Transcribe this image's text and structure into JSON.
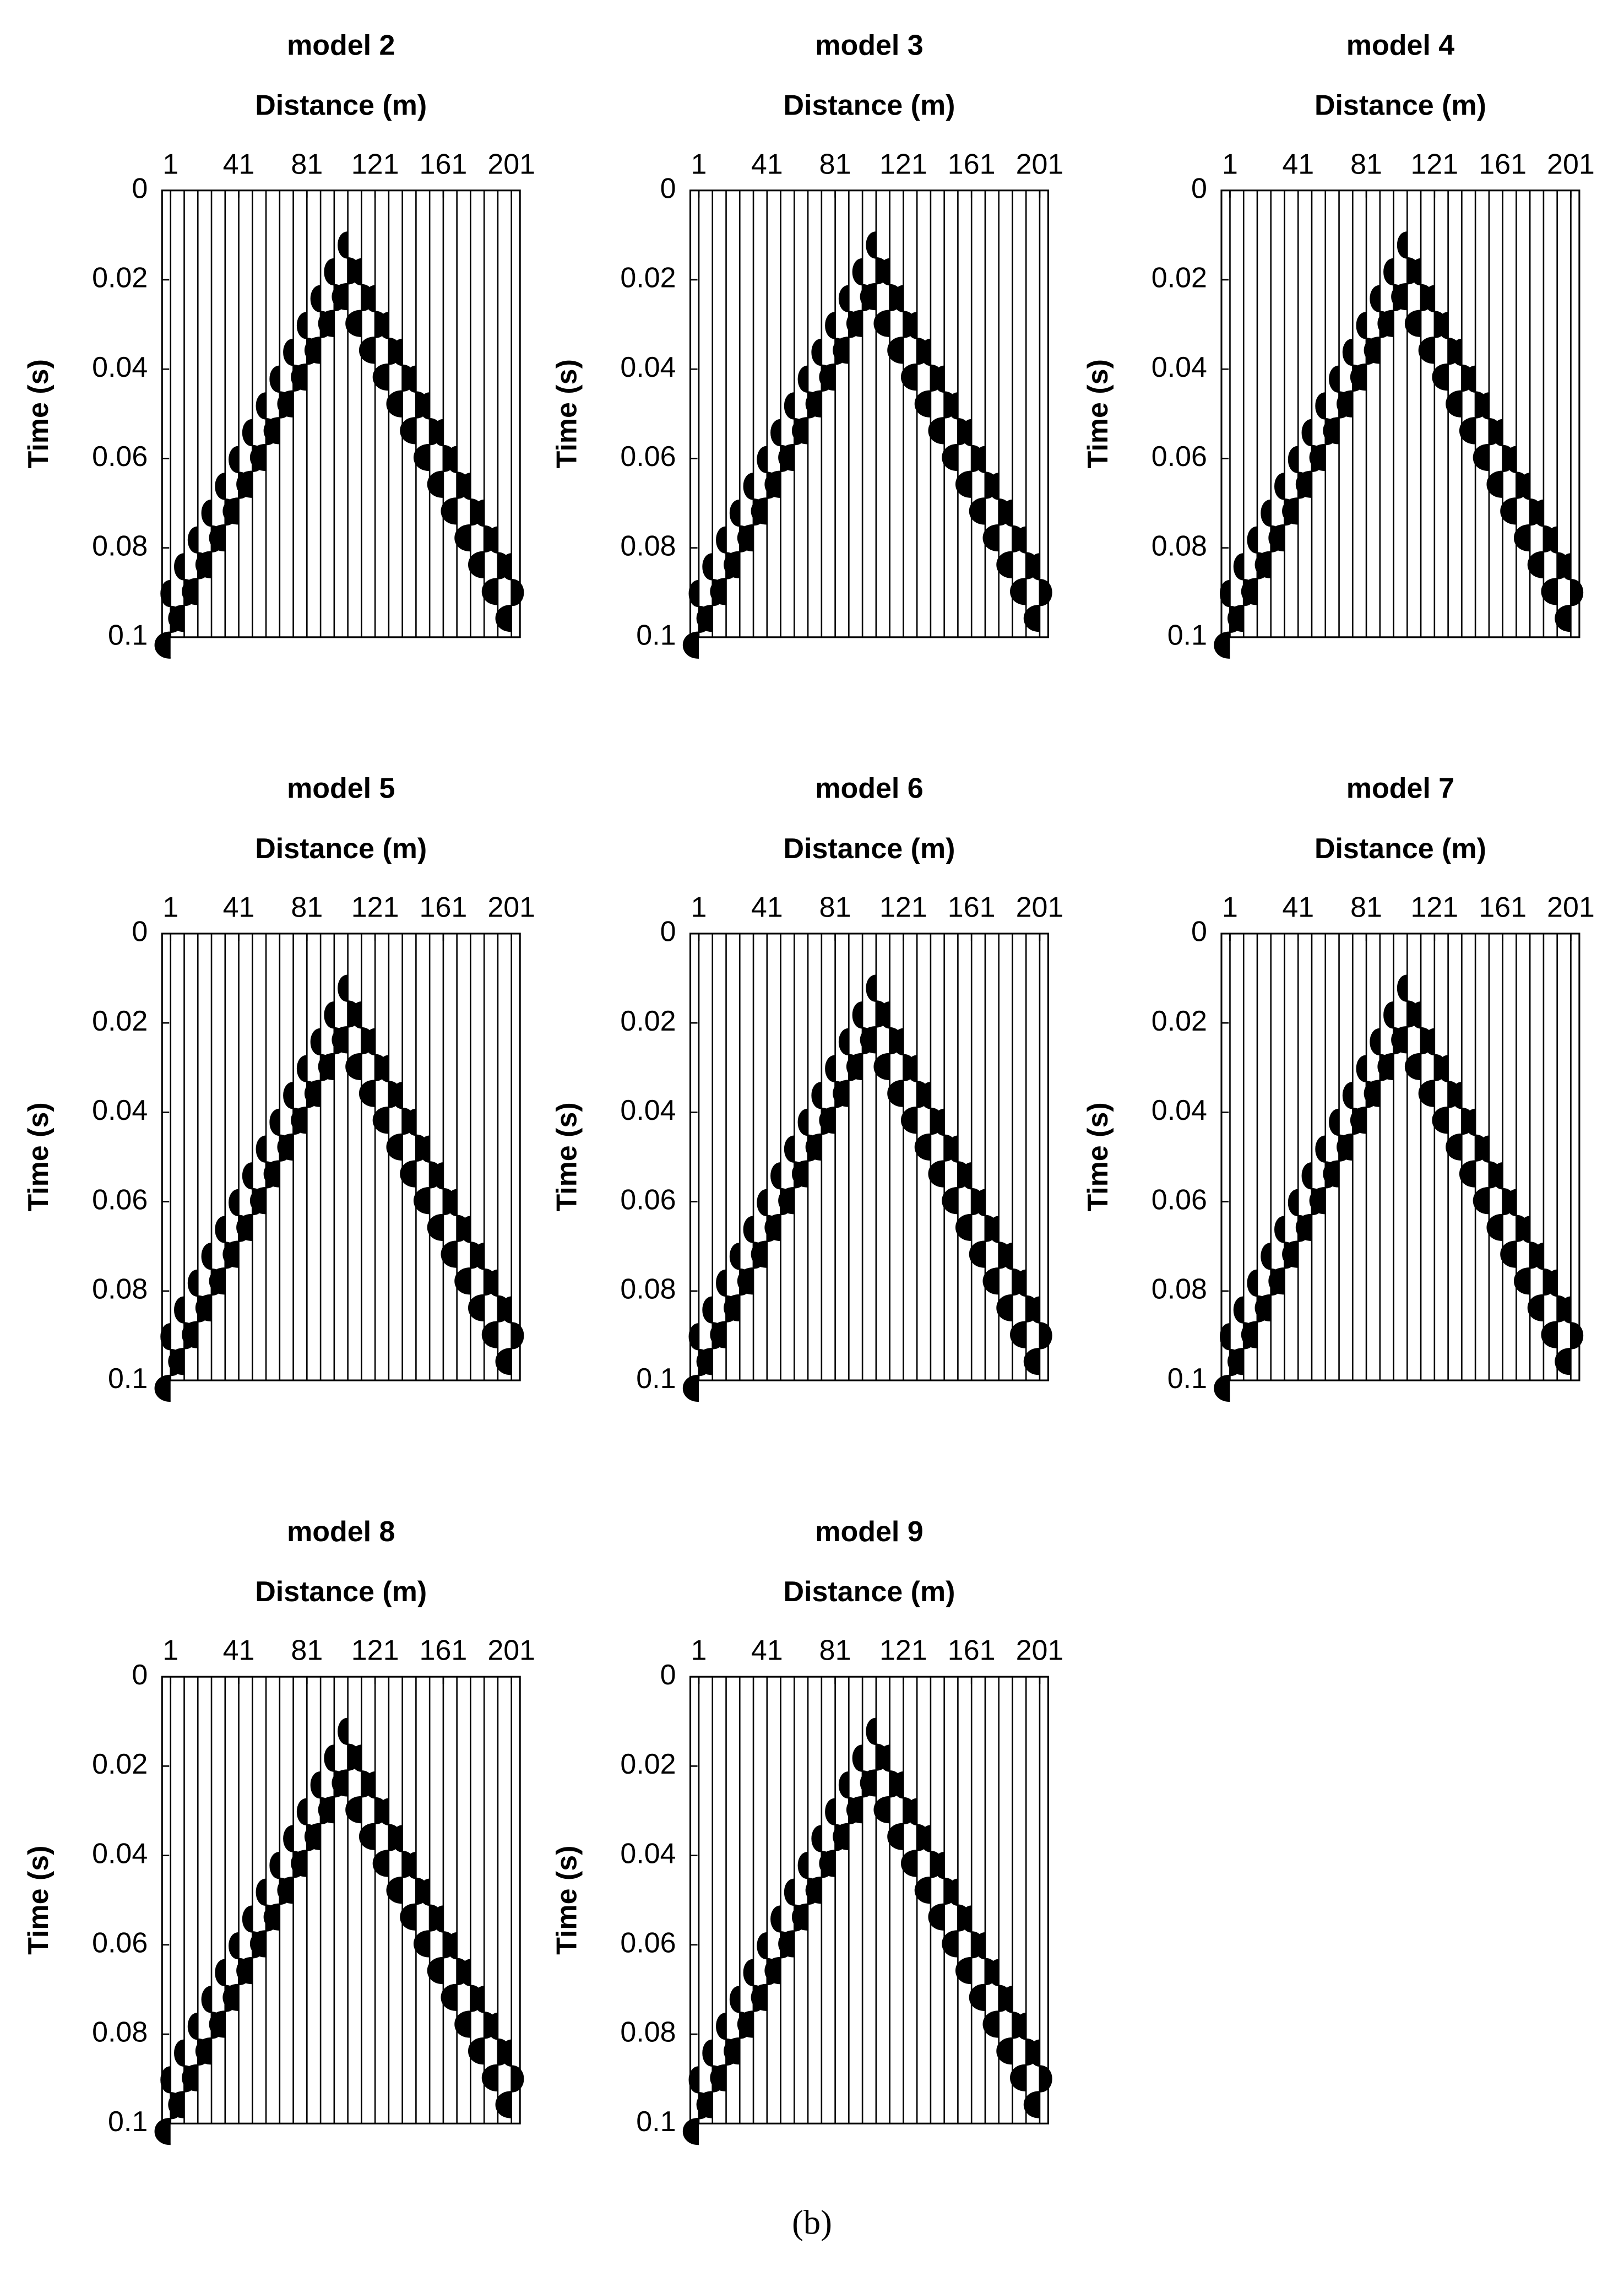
{
  "chart_data": [
    {
      "type": "seismic",
      "title": "model 2",
      "xlabel": "Distance (m)",
      "ylabel": "Time (s)",
      "xlim": [
        -4,
        206
      ],
      "xticks": [
        1,
        41,
        81,
        121,
        161,
        201
      ],
      "ylim": [
        0,
        0.1
      ],
      "yticks": [
        0,
        0.02,
        0.04,
        0.06,
        0.08,
        0.1
      ],
      "y_inverted": true,
      "x": [
        1,
        9,
        17,
        25,
        33,
        41,
        49,
        57,
        65,
        73,
        81,
        89,
        97,
        105,
        113,
        121,
        129,
        137,
        145,
        153,
        161,
        169,
        177,
        185,
        193,
        201
      ],
      "values": [
        0.096,
        0.09,
        0.084,
        0.078,
        0.072,
        0.066,
        0.06,
        0.054,
        0.048,
        0.042,
        0.036,
        0.03,
        0.024,
        0.018,
        0.024,
        0.03,
        0.036,
        0.042,
        0.048,
        0.054,
        0.06,
        0.066,
        0.072,
        0.078,
        0.084,
        0.09
      ]
    },
    {
      "type": "seismic",
      "title": "model 3",
      "xlabel": "Distance (m)",
      "ylabel": "Time (s)",
      "xlim": [
        -4,
        206
      ],
      "xticks": [
        1,
        41,
        81,
        121,
        161,
        201
      ],
      "ylim": [
        0,
        0.1
      ],
      "yticks": [
        0,
        0.02,
        0.04,
        0.06,
        0.08,
        0.1
      ],
      "y_inverted": true,
      "x": [
        1,
        9,
        17,
        25,
        33,
        41,
        49,
        57,
        65,
        73,
        81,
        89,
        97,
        105,
        113,
        121,
        129,
        137,
        145,
        153,
        161,
        169,
        177,
        185,
        193,
        201
      ],
      "values": [
        0.096,
        0.09,
        0.084,
        0.078,
        0.072,
        0.066,
        0.06,
        0.054,
        0.048,
        0.042,
        0.036,
        0.03,
        0.024,
        0.018,
        0.024,
        0.03,
        0.036,
        0.042,
        0.048,
        0.054,
        0.06,
        0.066,
        0.072,
        0.078,
        0.084,
        0.09
      ]
    },
    {
      "type": "seismic",
      "title": "model 4",
      "xlabel": "Distance (m)",
      "ylabel": "Time (s)",
      "xlim": [
        -4,
        206
      ],
      "xticks": [
        1,
        41,
        81,
        121,
        161,
        201
      ],
      "ylim": [
        0,
        0.1
      ],
      "yticks": [
        0,
        0.02,
        0.04,
        0.06,
        0.08,
        0.1
      ],
      "y_inverted": true,
      "x": [
        1,
        9,
        17,
        25,
        33,
        41,
        49,
        57,
        65,
        73,
        81,
        89,
        97,
        105,
        113,
        121,
        129,
        137,
        145,
        153,
        161,
        169,
        177,
        185,
        193,
        201
      ],
      "values": [
        0.096,
        0.09,
        0.084,
        0.078,
        0.072,
        0.066,
        0.06,
        0.054,
        0.048,
        0.042,
        0.036,
        0.03,
        0.024,
        0.018,
        0.024,
        0.03,
        0.036,
        0.042,
        0.048,
        0.054,
        0.06,
        0.066,
        0.072,
        0.078,
        0.084,
        0.09
      ]
    },
    {
      "type": "seismic",
      "title": "model 5",
      "xlabel": "Distance (m)",
      "ylabel": "Time (s)",
      "xlim": [
        -4,
        206
      ],
      "xticks": [
        1,
        41,
        81,
        121,
        161,
        201
      ],
      "ylim": [
        0,
        0.1
      ],
      "yticks": [
        0,
        0.02,
        0.04,
        0.06,
        0.08,
        0.1
      ],
      "y_inverted": true,
      "x": [
        1,
        9,
        17,
        25,
        33,
        41,
        49,
        57,
        65,
        73,
        81,
        89,
        97,
        105,
        113,
        121,
        129,
        137,
        145,
        153,
        161,
        169,
        177,
        185,
        193,
        201
      ],
      "values": [
        0.096,
        0.09,
        0.084,
        0.078,
        0.072,
        0.066,
        0.06,
        0.054,
        0.048,
        0.042,
        0.036,
        0.03,
        0.024,
        0.018,
        0.024,
        0.03,
        0.036,
        0.042,
        0.048,
        0.054,
        0.06,
        0.066,
        0.072,
        0.078,
        0.084,
        0.09
      ]
    },
    {
      "type": "seismic",
      "title": "model 6",
      "xlabel": "Distance (m)",
      "ylabel": "Time (s)",
      "xlim": [
        -4,
        206
      ],
      "xticks": [
        1,
        41,
        81,
        121,
        161,
        201
      ],
      "ylim": [
        0,
        0.1
      ],
      "yticks": [
        0,
        0.02,
        0.04,
        0.06,
        0.08,
        0.1
      ],
      "y_inverted": true,
      "x": [
        1,
        9,
        17,
        25,
        33,
        41,
        49,
        57,
        65,
        73,
        81,
        89,
        97,
        105,
        113,
        121,
        129,
        137,
        145,
        153,
        161,
        169,
        177,
        185,
        193,
        201
      ],
      "values": [
        0.096,
        0.09,
        0.084,
        0.078,
        0.072,
        0.066,
        0.06,
        0.054,
        0.048,
        0.042,
        0.036,
        0.03,
        0.024,
        0.018,
        0.024,
        0.03,
        0.036,
        0.042,
        0.048,
        0.054,
        0.06,
        0.066,
        0.072,
        0.078,
        0.084,
        0.09
      ]
    },
    {
      "type": "seismic",
      "title": "model 7",
      "xlabel": "Distance (m)",
      "ylabel": "Time (s)",
      "xlim": [
        -4,
        206
      ],
      "xticks": [
        1,
        41,
        81,
        121,
        161,
        201
      ],
      "ylim": [
        0,
        0.1
      ],
      "yticks": [
        0,
        0.02,
        0.04,
        0.06,
        0.08,
        0.1
      ],
      "y_inverted": true,
      "x": [
        1,
        9,
        17,
        25,
        33,
        41,
        49,
        57,
        65,
        73,
        81,
        89,
        97,
        105,
        113,
        121,
        129,
        137,
        145,
        153,
        161,
        169,
        177,
        185,
        193,
        201
      ],
      "values": [
        0.096,
        0.09,
        0.084,
        0.078,
        0.072,
        0.066,
        0.06,
        0.054,
        0.048,
        0.042,
        0.036,
        0.03,
        0.024,
        0.018,
        0.024,
        0.03,
        0.036,
        0.042,
        0.048,
        0.054,
        0.06,
        0.066,
        0.072,
        0.078,
        0.084,
        0.09
      ]
    },
    {
      "type": "seismic",
      "title": "model 8",
      "xlabel": "Distance (m)",
      "ylabel": "Time (s)",
      "xlim": [
        -4,
        206
      ],
      "xticks": [
        1,
        41,
        81,
        121,
        161,
        201
      ],
      "ylim": [
        0,
        0.1
      ],
      "yticks": [
        0,
        0.02,
        0.04,
        0.06,
        0.08,
        0.1
      ],
      "y_inverted": true,
      "x": [
        1,
        9,
        17,
        25,
        33,
        41,
        49,
        57,
        65,
        73,
        81,
        89,
        97,
        105,
        113,
        121,
        129,
        137,
        145,
        153,
        161,
        169,
        177,
        185,
        193,
        201
      ],
      "values": [
        0.096,
        0.09,
        0.084,
        0.078,
        0.072,
        0.066,
        0.06,
        0.054,
        0.048,
        0.042,
        0.036,
        0.03,
        0.024,
        0.018,
        0.024,
        0.03,
        0.036,
        0.042,
        0.048,
        0.054,
        0.06,
        0.066,
        0.072,
        0.078,
        0.084,
        0.09
      ]
    },
    {
      "type": "seismic",
      "title": "model 9",
      "xlabel": "Distance (m)",
      "ylabel": "Time (s)",
      "xlim": [
        -4,
        206
      ],
      "xticks": [
        1,
        41,
        81,
        121,
        161,
        201
      ],
      "ylim": [
        0,
        0.1
      ],
      "yticks": [
        0,
        0.02,
        0.04,
        0.06,
        0.08,
        0.1
      ],
      "y_inverted": true,
      "x": [
        1,
        9,
        17,
        25,
        33,
        41,
        49,
        57,
        65,
        73,
        81,
        89,
        97,
        105,
        113,
        121,
        129,
        137,
        145,
        153,
        161,
        169,
        177,
        185,
        193,
        201
      ],
      "values": [
        0.096,
        0.09,
        0.084,
        0.078,
        0.072,
        0.066,
        0.06,
        0.054,
        0.048,
        0.042,
        0.036,
        0.03,
        0.024,
        0.018,
        0.024,
        0.03,
        0.036,
        0.042,
        0.048,
        0.054,
        0.06,
        0.066,
        0.072,
        0.078,
        0.084,
        0.09
      ]
    }
  ],
  "caption": "(b)"
}
